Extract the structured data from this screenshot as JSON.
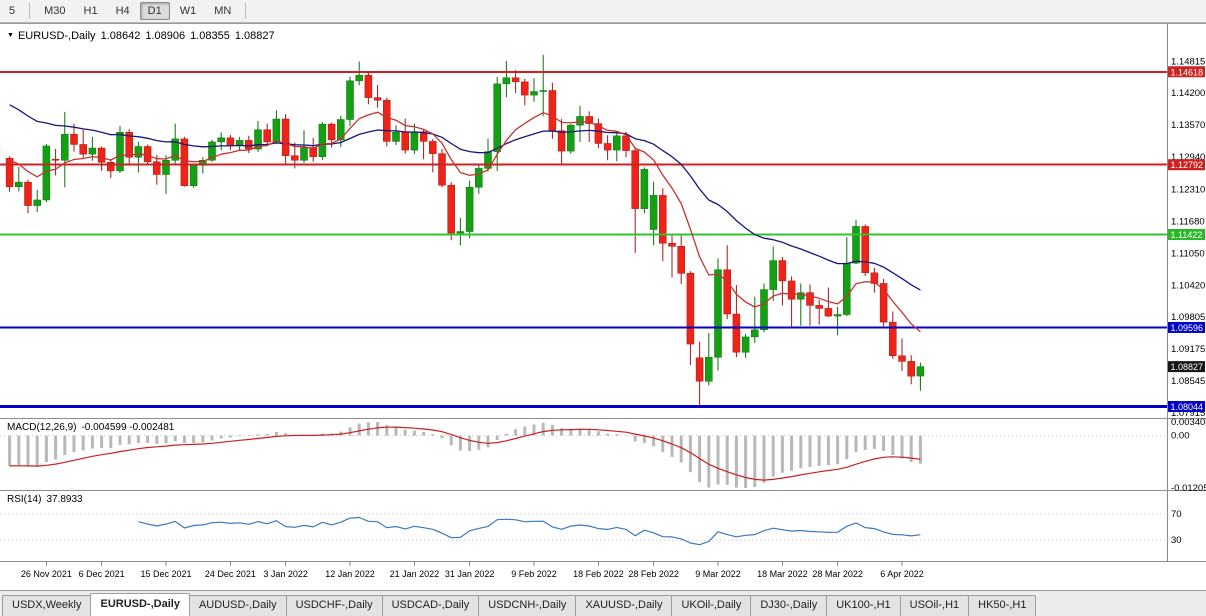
{
  "icons": {
    "chart_arrow": "▼"
  },
  "toolbar": {
    "timeframes": [
      {
        "label": "5",
        "active": false
      },
      {
        "label": "M30",
        "active": false
      },
      {
        "label": "H1",
        "active": false
      },
      {
        "label": "H4",
        "active": false
      },
      {
        "label": "D1",
        "active": true
      },
      {
        "label": "W1",
        "active": false
      },
      {
        "label": "MN",
        "active": false
      }
    ],
    "separators_after": [
      "5",
      "MN"
    ]
  },
  "chart": {
    "title": {
      "symbol": "EURUSD-,Daily",
      "open": "1.08642",
      "high": "1.08906",
      "low": "1.08355",
      "close": "1.08827"
    },
    "y_axis": {
      "ticks": [
        "1.14815",
        "1.14200",
        "1.13570",
        "1.12940",
        "1.12310",
        "1.11680",
        "1.11050",
        "1.10420",
        "1.09805",
        "1.09175",
        "1.08545",
        "1.07915"
      ],
      "badges": [
        {
          "label": "1.14618",
          "price": 1.14618,
          "color": "#cc2222"
        },
        {
          "label": "1.12792",
          "price": 1.12792,
          "color": "#cc2222"
        },
        {
          "label": "1.11422",
          "price": 1.11422,
          "color": "#28b828"
        },
        {
          "label": "1.09596",
          "price": 1.09596,
          "color": "#0000c8"
        },
        {
          "label": "1.08827",
          "price": 1.08827,
          "color": "#151515"
        },
        {
          "label": "1.08044",
          "price": 1.08044,
          "color": "#0000c8"
        }
      ]
    },
    "levels": [
      {
        "price": 1.14618,
        "color": "#cc2222",
        "width": 2
      },
      {
        "price": 1.12792,
        "color": "#cc2222",
        "width": 2
      },
      {
        "price": 1.11422,
        "color": "#2ec52e",
        "width": 2
      },
      {
        "price": 1.09596,
        "color": "#0000c8",
        "width": 2
      },
      {
        "price": 1.08044,
        "color": "#0000c8",
        "width": 3
      }
    ],
    "colors": {
      "up": "#13a113",
      "down": "#ee2419",
      "up_wick": "#0b6e0b",
      "down_wick": "#a81410",
      "ma_fast": "#c83232",
      "ma_slow": "#161678",
      "macd_hist": "#b8b8b8",
      "macd_signal": "#cc2020",
      "rsi_line": "#3a7abf"
    },
    "candles": [
      [
        1.1292,
        1.1296,
        1.1226,
        1.1236
      ],
      [
        1.1236,
        1.1275,
        1.1227,
        1.1245
      ],
      [
        1.1245,
        1.125,
        1.1184,
        1.1199
      ],
      [
        1.1199,
        1.123,
        1.1186,
        1.121
      ],
      [
        1.121,
        1.132,
        1.1206,
        1.1316
      ],
      [
        1.129,
        1.131,
        1.1258,
        1.1288
      ],
      [
        1.1288,
        1.1383,
        1.1235,
        1.1339
      ],
      [
        1.1339,
        1.136,
        1.1305,
        1.1319
      ],
      [
        1.1319,
        1.1348,
        1.1293,
        1.13
      ],
      [
        1.13,
        1.1334,
        1.1287,
        1.1312
      ],
      [
        1.1312,
        1.1315,
        1.1267,
        1.1284
      ],
      [
        1.1284,
        1.129,
        1.1253,
        1.1267
      ],
      [
        1.1267,
        1.1355,
        1.1263,
        1.1343
      ],
      [
        1.1343,
        1.1349,
        1.128,
        1.1294
      ],
      [
        1.1294,
        1.1324,
        1.1264,
        1.1315
      ],
      [
        1.1315,
        1.1319,
        1.1278,
        1.1285
      ],
      [
        1.1285,
        1.1298,
        1.124,
        1.126
      ],
      [
        1.126,
        1.1298,
        1.1222,
        1.1288
      ],
      [
        1.1288,
        1.136,
        1.128,
        1.133
      ],
      [
        1.133,
        1.1334,
        1.1236,
        1.1238
      ],
      [
        1.1238,
        1.128,
        1.1234,
        1.1278
      ],
      [
        1.1278,
        1.1294,
        1.1262,
        1.1288
      ],
      [
        1.1288,
        1.1328,
        1.1285,
        1.1324
      ],
      [
        1.1324,
        1.1343,
        1.1308,
        1.1332
      ],
      [
        1.1332,
        1.1338,
        1.1308,
        1.1318
      ],
      [
        1.1318,
        1.1334,
        1.1308,
        1.1327
      ],
      [
        1.1327,
        1.1336,
        1.1302,
        1.131
      ],
      [
        1.131,
        1.1365,
        1.1304,
        1.1348
      ],
      [
        1.1348,
        1.136,
        1.1316,
        1.1324
      ],
      [
        1.1324,
        1.1386,
        1.132,
        1.1369
      ],
      [
        1.1369,
        1.1379,
        1.1279,
        1.1297
      ],
      [
        1.1297,
        1.1323,
        1.1272,
        1.1288
      ],
      [
        1.1288,
        1.1347,
        1.1283,
        1.1313
      ],
      [
        1.1313,
        1.1332,
        1.1285,
        1.1295
      ],
      [
        1.1295,
        1.1363,
        1.1288,
        1.1359
      ],
      [
        1.1359,
        1.1362,
        1.1313,
        1.1328
      ],
      [
        1.1328,
        1.1375,
        1.1314,
        1.1368
      ],
      [
        1.1368,
        1.1452,
        1.1355,
        1.1444
      ],
      [
        1.1444,
        1.1482,
        1.1435,
        1.1455
      ],
      [
        1.1455,
        1.146,
        1.1398,
        1.1411
      ],
      [
        1.1411,
        1.1436,
        1.1391,
        1.1406
      ],
      [
        1.1406,
        1.1411,
        1.1315,
        1.1325
      ],
      [
        1.1325,
        1.1357,
        1.1318,
        1.1343
      ],
      [
        1.1343,
        1.137,
        1.1301,
        1.1308
      ],
      [
        1.1308,
        1.136,
        1.13,
        1.1344
      ],
      [
        1.1344,
        1.1348,
        1.129,
        1.1325
      ],
      [
        1.1325,
        1.133,
        1.1264,
        1.1301
      ],
      [
        1.1301,
        1.131,
        1.1235,
        1.1239
      ],
      [
        1.1239,
        1.1245,
        1.1131,
        1.1145
      ],
      [
        1.1145,
        1.1175,
        1.1121,
        1.1148
      ],
      [
        1.1148,
        1.1248,
        1.1135,
        1.1235
      ],
      [
        1.1235,
        1.1279,
        1.1222,
        1.1272
      ],
      [
        1.1272,
        1.133,
        1.1266,
        1.1305
      ],
      [
        1.1305,
        1.1452,
        1.1267,
        1.1438
      ],
      [
        1.1438,
        1.1483,
        1.1412,
        1.145
      ],
      [
        1.145,
        1.1465,
        1.142,
        1.1442
      ],
      [
        1.1442,
        1.1448,
        1.1396,
        1.1416
      ],
      [
        1.1416,
        1.1449,
        1.1403,
        1.1423
      ],
      [
        1.1423,
        1.1495,
        1.1375,
        1.1425
      ],
      [
        1.1425,
        1.144,
        1.133,
        1.1346
      ],
      [
        1.1346,
        1.1369,
        1.128,
        1.1306
      ],
      [
        1.1306,
        1.1359,
        1.1301,
        1.1357
      ],
      [
        1.1357,
        1.1395,
        1.1324,
        1.1374
      ],
      [
        1.1374,
        1.1384,
        1.1324,
        1.136
      ],
      [
        1.136,
        1.137,
        1.1312,
        1.1321
      ],
      [
        1.1321,
        1.1337,
        1.1288,
        1.1308
      ],
      [
        1.1308,
        1.1342,
        1.1286,
        1.1336
      ],
      [
        1.1336,
        1.1344,
        1.1294,
        1.1307
      ],
      [
        1.1307,
        1.1313,
        1.1106,
        1.1193
      ],
      [
        1.1193,
        1.1274,
        1.1184,
        1.127
      ],
      [
        1.1152,
        1.1246,
        1.1121,
        1.1219
      ],
      [
        1.1219,
        1.1233,
        1.109,
        1.1125
      ],
      [
        1.1125,
        1.1144,
        1.1058,
        1.1119
      ],
      [
        1.1119,
        1.114,
        1.1045,
        1.1066
      ],
      [
        1.1066,
        1.107,
        1.0886,
        1.0927
      ],
      [
        1.09,
        1.0932,
        1.0806,
        1.0854
      ],
      [
        1.0854,
        1.0949,
        1.0846,
        1.0901
      ],
      [
        1.0901,
        1.1095,
        1.0875,
        1.1073
      ],
      [
        1.1073,
        1.1121,
        1.0976,
        1.0986
      ],
      [
        1.0986,
        1.1043,
        1.0901,
        1.0911
      ],
      [
        1.0911,
        1.0947,
        1.09,
        1.0941
      ],
      [
        1.0941,
        1.102,
        1.0929,
        1.0955
      ],
      [
        1.0955,
        1.1046,
        1.095,
        1.1034
      ],
      [
        1.1034,
        1.1119,
        1.1012,
        1.1091
      ],
      [
        1.1091,
        1.1098,
        1.1003,
        1.1051
      ],
      [
        1.1051,
        1.106,
        1.0961,
        1.1015
      ],
      [
        1.1015,
        1.1046,
        1.0963,
        1.1028
      ],
      [
        1.1028,
        1.1044,
        1.0963,
        1.1003
      ],
      [
        1.1003,
        1.1014,
        1.0965,
        1.0997
      ],
      [
        1.0997,
        1.1038,
        1.098,
        1.0982
      ],
      [
        1.0982,
        1.1,
        1.0944,
        1.0985
      ],
      [
        1.0985,
        1.1137,
        1.0982,
        1.1086
      ],
      [
        1.1086,
        1.1171,
        1.1084,
        1.1158
      ],
      [
        1.1158,
        1.1162,
        1.1061,
        1.1067
      ],
      [
        1.1067,
        1.1077,
        1.1028,
        1.1046
      ],
      [
        1.1046,
        1.1055,
        1.0962,
        1.097
      ],
      [
        1.097,
        1.0991,
        1.0898,
        1.0904
      ],
      [
        1.0904,
        1.0938,
        1.0874,
        1.0893
      ],
      [
        1.0893,
        1.0905,
        1.0848,
        1.0864
      ],
      [
        1.08642,
        1.08906,
        1.08355,
        1.08827
      ]
    ],
    "x_labels": [
      {
        "i": 4,
        "t": "26 Nov 2021"
      },
      {
        "i": 10,
        "t": "6 Dec 2021"
      },
      {
        "i": 17,
        "t": "15 Dec 2021"
      },
      {
        "i": 24,
        "t": "24 Dec 2021"
      },
      {
        "i": 30,
        "t": "3 Jan 2022"
      },
      {
        "i": 37,
        "t": "12 Jan 2022"
      },
      {
        "i": 44,
        "t": "21 Jan 2022"
      },
      {
        "i": 50,
        "t": "31 Jan 2022"
      },
      {
        "i": 57,
        "t": "9 Feb 2022"
      },
      {
        "i": 64,
        "t": "18 Feb 2022"
      },
      {
        "i": 70,
        "t": "28 Feb 2022"
      },
      {
        "i": 77,
        "t": "9 Mar 2022"
      },
      {
        "i": 84,
        "t": "18 Mar 2022"
      },
      {
        "i": 90,
        "t": "28 Mar 2022"
      },
      {
        "i": 97,
        "t": "6 Apr 2022"
      }
    ]
  },
  "macd": {
    "name": "MACD(12,26,9)",
    "values": "-0.004599 -0.002481",
    "axis": {
      "max": "0.003408",
      "zero": "0.00",
      "min": "-0.01205"
    }
  },
  "rsi": {
    "name": "RSI(14)",
    "value": "37.8933",
    "levels": [
      {
        "label": "70",
        "value": 70
      },
      {
        "label": "30",
        "value": 30
      }
    ]
  },
  "tabs": {
    "active_index": 1,
    "items": [
      "USDX,Weekly",
      "EURUSD-,Daily",
      "AUDUSD-,Daily",
      "USDCHF-,Daily",
      "USDCAD-,Daily",
      "USDCNH-,Daily",
      "XAUUSD-,Daily",
      "UKOil-,Daily",
      "DJ30-,Daily",
      "UK100-,H1",
      "USOil-,H1",
      "HK50-,H1"
    ]
  }
}
